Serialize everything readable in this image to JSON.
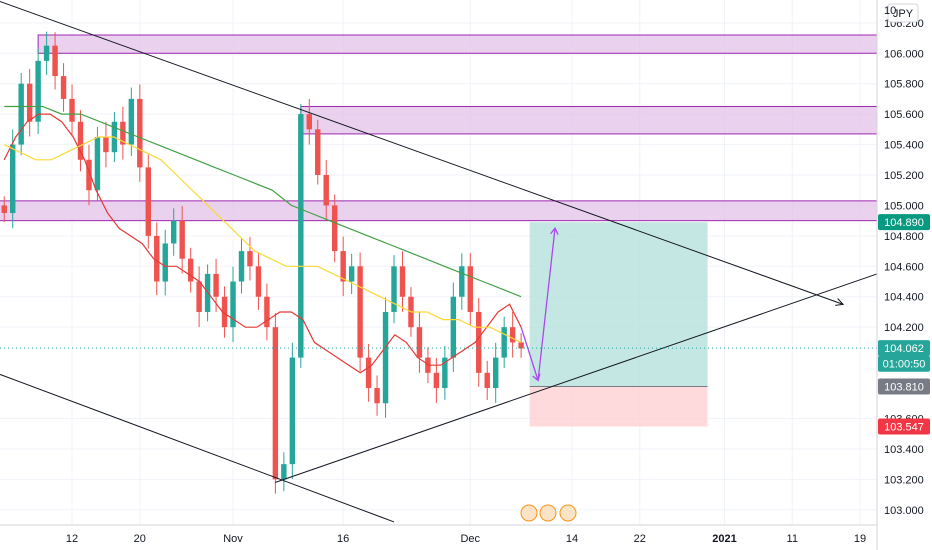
{
  "chart_data": {
    "type": "candlestick",
    "instrument_currency": "JPY",
    "y_axis": {
      "ylim": [
        102.9,
        106.35
      ],
      "ticks": [
        "106.200",
        "106.000",
        "105.800",
        "105.600",
        "105.400",
        "105.200",
        "105.000",
        "104.800",
        "104.600",
        "104.400",
        "104.200",
        "103.600",
        "103.400",
        "103.200",
        "103.000"
      ],
      "tick_values": [
        106.2,
        106.0,
        105.8,
        105.6,
        105.4,
        105.2,
        105.0,
        104.8,
        104.6,
        104.4,
        104.2,
        103.6,
        103.4,
        103.2,
        103.0
      ],
      "top_partial_label": "10"
    },
    "x_axis": {
      "ticks": [
        {
          "label": "12",
          "bar": 8
        },
        {
          "label": "20",
          "bar": 16
        },
        {
          "label": "Nov",
          "bar": 27
        },
        {
          "label": "16",
          "bar": 40
        },
        {
          "label": "Dec",
          "bar": 55
        },
        {
          "label": "14",
          "bar": 67
        },
        {
          "label": "22",
          "bar": 75
        },
        {
          "label": "2021",
          "bar": 85,
          "bold": true
        },
        {
          "label": "11",
          "bar": 93
        },
        {
          "label": "19",
          "bar": 101
        }
      ],
      "bar_range": [
        -0.5,
        103
      ],
      "last_candle_bar": 62
    },
    "candles_close": [
      104.95,
      105.4,
      105.8,
      105.55,
      105.95,
      106.05,
      105.85,
      105.7,
      105.55,
      105.3,
      105.1,
      105.45,
      105.35,
      105.55,
      105.4,
      105.7,
      105.25,
      104.8,
      104.5,
      104.75,
      104.9,
      104.65,
      104.5,
      104.3,
      104.55,
      104.4,
      104.2,
      104.5,
      104.7,
      104.6,
      104.4,
      104.2,
      103.2,
      103.3,
      104.0,
      105.6,
      105.5,
      105.2,
      105.0,
      104.7,
      104.5,
      104.6,
      104.0,
      103.8,
      103.7,
      104.3,
      104.6,
      104.4,
      104.2,
      104.0,
      103.9,
      103.8,
      104.0,
      104.4,
      104.6,
      104.3,
      103.9,
      103.8,
      104.0,
      104.2,
      104.1,
      104.06
    ],
    "moving_averages": [
      {
        "color": "#e53935",
        "values": [
          105.3,
          105.45,
          105.55,
          105.6,
          105.6,
          105.55,
          105.45,
          105.3,
          105.1,
          104.95,
          104.85,
          104.8,
          104.75,
          104.65,
          104.6,
          104.6,
          104.55,
          104.5,
          104.4,
          104.3,
          104.25,
          104.2,
          104.2,
          104.25,
          104.3,
          104.3,
          104.25,
          104.1,
          104.05,
          104.0,
          103.95,
          103.9,
          103.95,
          104.05,
          104.15,
          104.1,
          104.0,
          103.95,
          103.95,
          104.0,
          104.05,
          104.1,
          104.2,
          104.3,
          104.35,
          104.2
        ]
      },
      {
        "color": "#fdd835",
        "values": [
          105.4,
          105.35,
          105.3,
          105.3,
          105.35,
          105.4,
          105.45,
          105.45,
          105.4,
          105.35,
          105.3,
          105.2,
          105.1,
          105.0,
          104.9,
          104.8,
          104.7,
          104.65,
          104.6,
          104.6,
          104.6,
          104.55,
          104.5,
          104.45,
          104.4,
          104.35,
          104.3,
          104.3,
          104.25,
          104.25,
          104.2,
          104.2,
          104.15,
          104.1
        ]
      },
      {
        "color": "#43a047",
        "values": [
          105.65,
          105.65,
          105.65,
          105.6,
          105.6,
          105.55,
          105.5,
          105.45,
          105.4,
          105.35,
          105.3,
          105.25,
          105.2,
          105.15,
          105.1,
          105.0,
          104.95,
          104.9,
          104.85,
          104.8,
          104.75,
          104.7,
          104.65,
          104.6,
          104.55,
          104.5,
          104.45,
          104.4
        ]
      }
    ],
    "zones": [
      {
        "from": 106.0,
        "to": 106.12,
        "start_bar": 4
      },
      {
        "from": 105.47,
        "to": 105.65,
        "start_bar": 35
      },
      {
        "from": 104.9,
        "to": 105.03,
        "start_bar": -1
      }
    ],
    "trendlines": [
      {
        "p1": {
          "bar": -1,
          "price": 106.35
        },
        "p2": {
          "bar": 99,
          "price": 104.35
        },
        "arrow": true
      },
      {
        "p1": {
          "bar": -1,
          "price": 103.9
        },
        "p2": {
          "bar": 46,
          "price": 102.92
        }
      },
      {
        "p1": {
          "bar": 32,
          "price": 103.18
        },
        "p2": {
          "bar": 103,
          "price": 104.55
        }
      }
    ],
    "projection_path": [
      {
        "bar": 61,
        "price": 104.2
      },
      {
        "bar": 63,
        "price": 103.85
      },
      {
        "bar": 65,
        "price": 104.85
      }
    ],
    "position": {
      "start_bar": 62,
      "end_bar": 83,
      "target": 104.89,
      "entry": 103.81,
      "stop": 103.547
    },
    "last_price": 104.062,
    "price_labels": [
      {
        "text": "104.890",
        "value": 104.89,
        "color": "#089981"
      },
      {
        "text": "104.062",
        "value": 104.062,
        "color": "#26a69a"
      },
      {
        "text": "01:00:50",
        "value": 103.96,
        "color": "#26a69a"
      },
      {
        "text": "103.810",
        "value": 103.81,
        "color": "#787b86"
      },
      {
        "text": "103.547",
        "value": 103.547,
        "color": "#f23645"
      }
    ],
    "colors": {
      "up": "#26a69a",
      "down": "#ef5350",
      "zone_fill": "#e1bee7",
      "zone_border": "#9c27b0",
      "profit_zone": "#b2dfdb",
      "loss_zone": "#ffcdd2",
      "path": "#ab47f0",
      "trendline": "#131722",
      "grid": "#f0f3fa"
    }
  }
}
